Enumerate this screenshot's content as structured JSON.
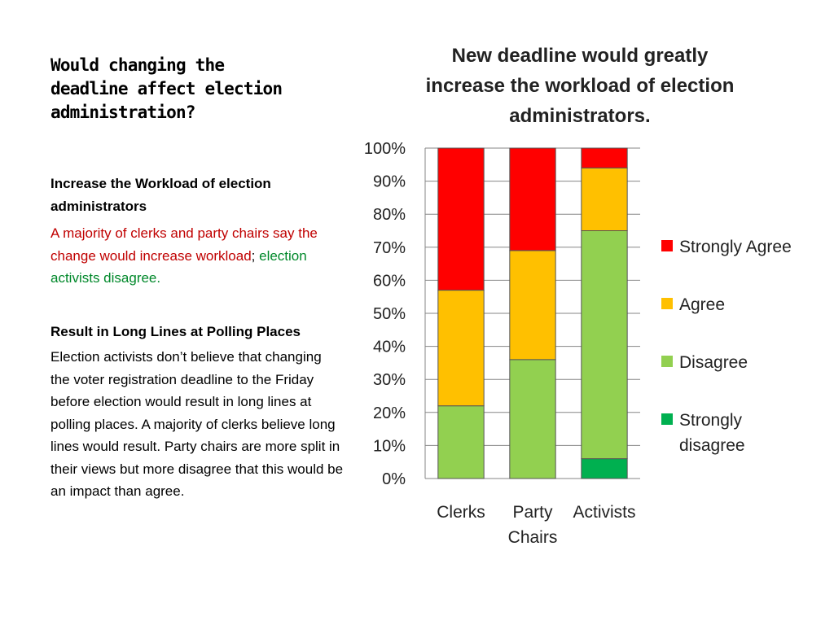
{
  "left": {
    "title_lines": [
      "Would changing the",
      "deadline affect election",
      "administration?"
    ],
    "section1": {
      "heading": "Increase the Workload of election administrators",
      "red_text": "A majority of clerks and party chairs say the change would increase workload",
      "separator": "; ",
      "green_text": "election activists disagree."
    },
    "section2": {
      "heading": "Result in Long Lines at Polling Places",
      "body": "Election activists don’t believe that changing the voter registration deadline to the Friday before election would result in long lines at polling places.  A majority of clerks believe long lines would result.  Party chairs are more split in their views but more disagree that this would be an impact than agree."
    }
  },
  "chart_data": {
    "type": "bar",
    "stacked": true,
    "title_lines": [
      "New deadline would greatly",
      "increase the workload of election",
      "administrators."
    ],
    "categories": [
      [
        "Clerks"
      ],
      [
        "Party",
        "Chairs"
      ],
      [
        "Activists"
      ]
    ],
    "ylim": [
      0,
      100
    ],
    "yticks": [
      "0%",
      "10%",
      "20%",
      "30%",
      "40%",
      "50%",
      "60%",
      "70%",
      "80%",
      "90%",
      "100%"
    ],
    "grid": true,
    "legend_placement": "right",
    "series": [
      {
        "name": "Strongly disagree",
        "legend_lines": [
          "Strongly",
          "disagree"
        ],
        "color": "#00b050",
        "values": [
          0,
          0,
          6
        ]
      },
      {
        "name": "Disagree",
        "legend_lines": [
          "Disagree"
        ],
        "color": "#92d050",
        "values": [
          22,
          36,
          69
        ]
      },
      {
        "name": "Agree",
        "legend_lines": [
          "Agree"
        ],
        "color": "#ffc000",
        "values": [
          35,
          33,
          19
        ]
      },
      {
        "name": "Strongly Agree",
        "legend_lines": [
          "Strongly Agree"
        ],
        "color": "#ff0000",
        "values": [
          43,
          31,
          6
        ]
      }
    ],
    "legend_order": [
      3,
      2,
      1,
      0
    ]
  }
}
